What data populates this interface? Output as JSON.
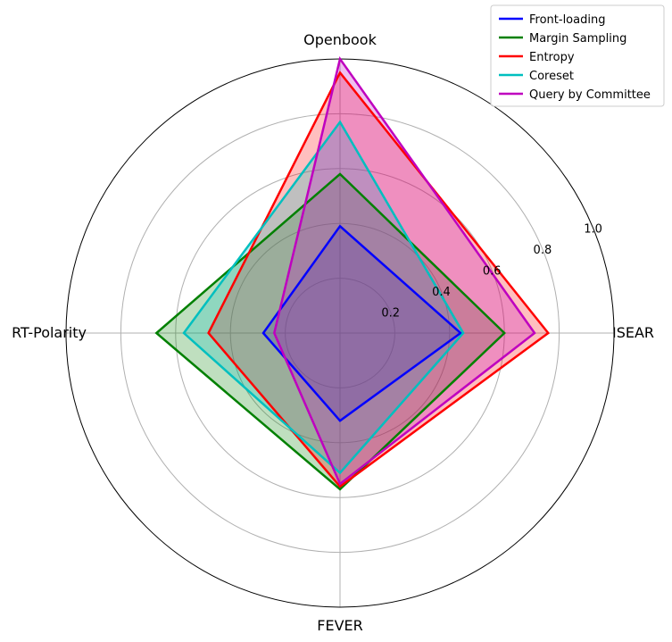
{
  "chart_data": {
    "type": "radar",
    "axes": [
      "ISEAR",
      "Openbook",
      "RT-Polarity",
      "FEVER"
    ],
    "radial_ticks": [
      "0.2",
      "0.4",
      "0.6",
      "0.8",
      "1.0"
    ],
    "rlim": [
      0,
      1.0
    ],
    "grid": true,
    "legend_position": "top-right",
    "series": [
      {
        "name": "Front-loading",
        "color": "#0000ff",
        "values": [
          0.44,
          0.39,
          0.28,
          0.32
        ]
      },
      {
        "name": "Margin Sampling",
        "color": "#008000",
        "values": [
          0.6,
          0.58,
          0.67,
          0.57
        ]
      },
      {
        "name": "Entropy",
        "color": "#ff0000",
        "values": [
          0.76,
          0.95,
          0.48,
          0.56
        ]
      },
      {
        "name": "Coreset",
        "color": "#00bfbf",
        "values": [
          0.45,
          0.77,
          0.57,
          0.51
        ]
      },
      {
        "name": "Query by Committee",
        "color": "#bf00bf",
        "values": [
          0.71,
          1.0,
          0.24,
          0.55
        ]
      }
    ]
  }
}
